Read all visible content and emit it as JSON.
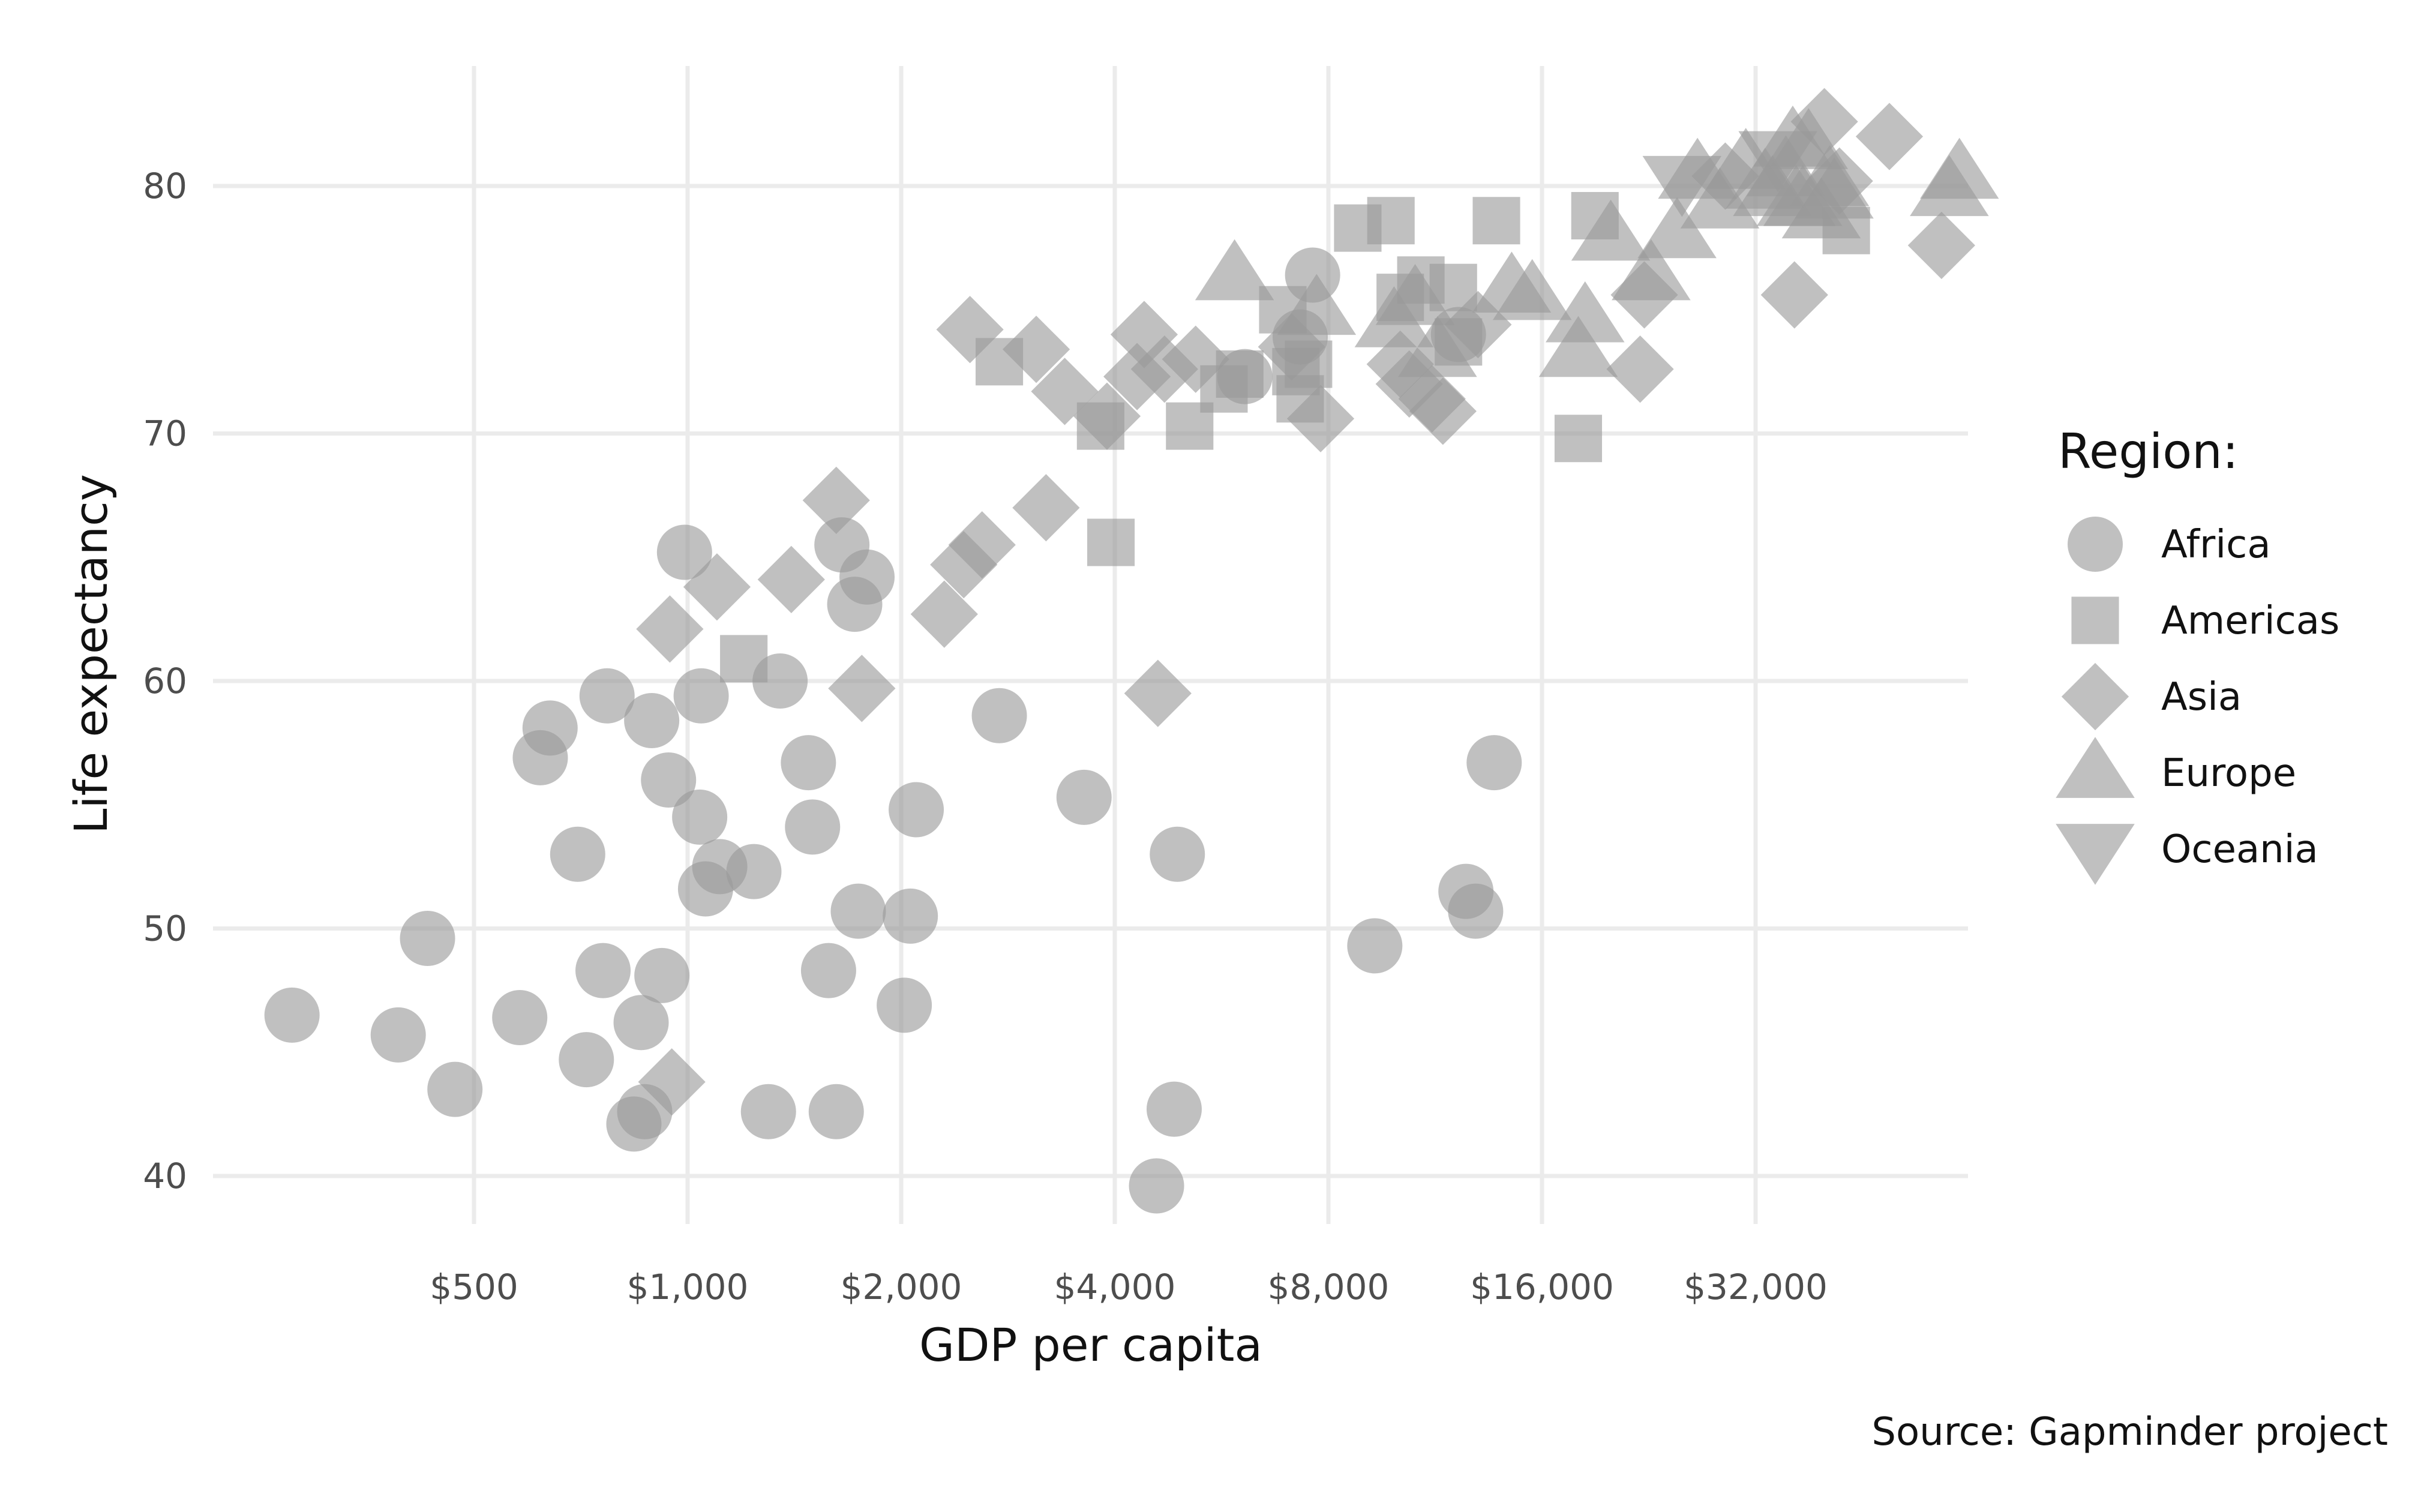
{
  "chart_data": {
    "type": "scatter",
    "title": "",
    "xlabel": "GDP per capita",
    "ylabel": "Life expectancy",
    "caption": "Source: Gapminder project",
    "x_scale": "log2",
    "xlim": [
      200,
      80000
    ],
    "ylim": [
      38.5,
      84
    ],
    "x_ticks": [
      {
        "value": 500,
        "label": "$500"
      },
      {
        "value": 1000,
        "label": "$1,000"
      },
      {
        "value": 2000,
        "label": "$2,000"
      },
      {
        "value": 4000,
        "label": "$4,000"
      },
      {
        "value": 8000,
        "label": "$8,000"
      },
      {
        "value": 16000,
        "label": "$16,000"
      },
      {
        "value": 32000,
        "label": "$32,000"
      }
    ],
    "y_ticks": [
      {
        "value": 40,
        "label": "40"
      },
      {
        "value": 50,
        "label": "50"
      },
      {
        "value": 60,
        "label": "60"
      },
      {
        "value": 70,
        "label": "70"
      },
      {
        "value": 80,
        "label": "80"
      }
    ],
    "grid": true,
    "point_color": "#999999",
    "legend": {
      "title": "Region:",
      "placement": "right",
      "entries": [
        {
          "label": "Africa",
          "shape": "circle"
        },
        {
          "label": "Americas",
          "shape": "square"
        },
        {
          "label": "Asia",
          "shape": "diamond"
        },
        {
          "label": "Europe",
          "shape": "triangle-up"
        },
        {
          "label": "Oceania",
          "shape": "triangle-down"
        }
      ]
    },
    "series": [
      {
        "name": "Africa",
        "shape": "circle",
        "points": [
          [
            277,
            46.5
          ],
          [
            391,
            45.7
          ],
          [
            430,
            49.6
          ],
          [
            470,
            43.5
          ],
          [
            580,
            46.4
          ],
          [
            620,
            56.9
          ],
          [
            640,
            58.1
          ],
          [
            700,
            53.0
          ],
          [
            720,
            44.7
          ],
          [
            760,
            48.3
          ],
          [
            770,
            59.4
          ],
          [
            840,
            42.1
          ],
          [
            860,
            46.2
          ],
          [
            870,
            42.6
          ],
          [
            890,
            58.4
          ],
          [
            920,
            48.1
          ],
          [
            940,
            56.0
          ],
          [
            990,
            65.2
          ],
          [
            1040,
            54.5
          ],
          [
            1045,
            59.4
          ],
          [
            1060,
            51.6
          ],
          [
            1110,
            52.5
          ],
          [
            1240,
            52.3
          ],
          [
            1300,
            42.6
          ],
          [
            1350,
            60.0
          ],
          [
            1480,
            56.7
          ],
          [
            1500,
            54.1
          ],
          [
            1580,
            48.3
          ],
          [
            1620,
            42.6
          ],
          [
            1650,
            65.5
          ],
          [
            1720,
            63.1
          ],
          [
            1740,
            50.7
          ],
          [
            1790,
            64.2
          ],
          [
            2020,
            46.9
          ],
          [
            2060,
            50.5
          ],
          [
            2100,
            54.8
          ],
          [
            2750,
            58.6
          ],
          [
            3620,
            55.3
          ],
          [
            4580,
            39.6
          ],
          [
            4850,
            42.7
          ],
          [
            4900,
            53.0
          ],
          [
            6100,
            72.3
          ],
          [
            7300,
            73.9
          ],
          [
            7600,
            76.4
          ],
          [
            9300,
            49.3
          ],
          [
            12200,
            74.0
          ],
          [
            12500,
            51.5
          ],
          [
            12900,
            50.7
          ],
          [
            13700,
            56.7
          ]
        ]
      },
      {
        "name": "Americas",
        "shape": "square",
        "points": [
          [
            1200,
            60.9
          ],
          [
            2750,
            72.9
          ],
          [
            3820,
            70.3
          ],
          [
            3950,
            65.6
          ],
          [
            5100,
            70.3
          ],
          [
            5700,
            71.8
          ],
          [
            6000,
            72.4
          ],
          [
            6900,
            75.0
          ],
          [
            7200,
            72.5
          ],
          [
            7300,
            71.4
          ],
          [
            7500,
            72.8
          ],
          [
            8800,
            78.3
          ],
          [
            9800,
            78.6
          ],
          [
            10100,
            75.5
          ],
          [
            10800,
            76.2
          ],
          [
            12000,
            75.9
          ],
          [
            12200,
            73.7
          ],
          [
            13800,
            78.6
          ],
          [
            18000,
            69.8
          ],
          [
            19000,
            78.8
          ],
          [
            42950,
            78.2
          ]
        ]
      },
      {
        "name": "Asia",
        "shape": "diamond",
        "points": [
          [
            950,
            43.8
          ],
          [
            944,
            62.1
          ],
          [
            1100,
            63.8
          ],
          [
            1400,
            64.1
          ],
          [
            1620,
            67.3
          ],
          [
            1760,
            59.7
          ],
          [
            2300,
            62.7
          ],
          [
            2450,
            64.7
          ],
          [
            2600,
            65.5
          ],
          [
            2500,
            74.2
          ],
          [
            3100,
            73.4
          ],
          [
            3200,
            67.0
          ],
          [
            3400,
            71.7
          ],
          [
            3900,
            70.7
          ],
          [
            4300,
            72.3
          ],
          [
            4400,
            74.0
          ],
          [
            4600,
            59.5
          ],
          [
            4700,
            72.6
          ],
          [
            5200,
            73.0
          ],
          [
            7100,
            73.5
          ],
          [
            7800,
            70.6
          ],
          [
            10100,
            72.8
          ],
          [
            10400,
            72.0
          ],
          [
            11600,
            70.9
          ],
          [
            11200,
            71.4
          ],
          [
            13000,
            74.4
          ],
          [
            22000,
            72.6
          ],
          [
            22300,
            75.6
          ],
          [
            29000,
            80.4
          ],
          [
            36300,
            75.6
          ],
          [
            40000,
            82.6
          ],
          [
            42000,
            80.2
          ],
          [
            49400,
            82.0
          ],
          [
            58500,
            77.6
          ]
        ]
      },
      {
        "name": "Europe",
        "shape": "triangle-up",
        "points": [
          [
            5900,
            76.4
          ],
          [
            7700,
            75.0
          ],
          [
            9900,
            74.5
          ],
          [
            10600,
            75.4
          ],
          [
            11400,
            73.3
          ],
          [
            14500,
            75.9
          ],
          [
            15500,
            75.6
          ],
          [
            18000,
            73.3
          ],
          [
            18400,
            74.7
          ],
          [
            20000,
            78.0
          ],
          [
            22800,
            76.4
          ],
          [
            24800,
            78.1
          ],
          [
            26500,
            80.5
          ],
          [
            28500,
            79.3
          ],
          [
            31000,
            80.9
          ],
          [
            33000,
            80.1
          ],
          [
            33800,
            79.8
          ],
          [
            35300,
            80.6
          ],
          [
            36100,
            81.8
          ],
          [
            37300,
            79.4
          ],
          [
            38000,
            81.7
          ],
          [
            36500,
            79.4
          ],
          [
            40700,
            80.2
          ],
          [
            39600,
            78.9
          ],
          [
            41300,
            79.7
          ],
          [
            60000,
            79.8
          ],
          [
            62000,
            80.5
          ]
        ]
      },
      {
        "name": "Oceania",
        "shape": "triangle-down",
        "points": [
          [
            25200,
            80.2
          ],
          [
            34400,
            81.2
          ]
        ]
      }
    ]
  }
}
